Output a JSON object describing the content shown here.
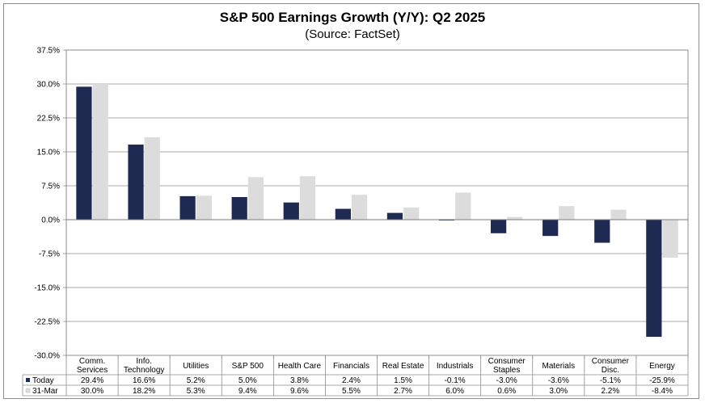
{
  "chart_data": {
    "type": "bar",
    "title": "S&P 500 Earnings Growth (Y/Y): Q2 2025",
    "subtitle": "(Source: FactSet)",
    "categories": [
      [
        "Comm.",
        "Services"
      ],
      [
        "Info.",
        "Technology"
      ],
      [
        "Utilities"
      ],
      [
        "S&P 500"
      ],
      [
        "Health Care"
      ],
      [
        "Financials"
      ],
      [
        "Real Estate"
      ],
      [
        "Industrials"
      ],
      [
        "Consumer",
        "Staples"
      ],
      [
        "Materials"
      ],
      [
        "Consumer",
        "Disc."
      ],
      [
        "Energy"
      ]
    ],
    "series": [
      {
        "name": "Today",
        "color": "#1f2a52",
        "values": [
          29.4,
          16.6,
          5.2,
          5.0,
          3.8,
          2.4,
          1.5,
          -0.1,
          -3.0,
          -3.6,
          -5.1,
          -25.9
        ],
        "labels": [
          "29.4%",
          "16.6%",
          "5.2%",
          "5.0%",
          "3.8%",
          "2.4%",
          "1.5%",
          "-0.1%",
          "-3.0%",
          "-3.6%",
          "-5.1%",
          "-25.9%"
        ]
      },
      {
        "name": "31-Mar",
        "color": "#dcdcdc",
        "values": [
          30.0,
          18.2,
          5.3,
          9.4,
          9.6,
          5.5,
          2.7,
          6.0,
          0.6,
          3.0,
          2.2,
          -8.4
        ],
        "labels": [
          "30.0%",
          "18.2%",
          "5.3%",
          "9.4%",
          "9.6%",
          "5.5%",
          "2.7%",
          "6.0%",
          "0.6%",
          "3.0%",
          "2.2%",
          "-8.4%"
        ]
      }
    ],
    "yticks": [
      37.5,
      30.0,
      22.5,
      15.0,
      7.5,
      0.0,
      -7.5,
      -15.0,
      -22.5,
      -30.0
    ],
    "ytick_labels": [
      "37.5%",
      "30.0%",
      "22.5%",
      "15.0%",
      "7.5%",
      "0.0%",
      "-7.5%",
      "-15.0%",
      "-22.5%",
      "-30.0%"
    ],
    "ylim": [
      -30,
      37.5
    ],
    "grid": true,
    "xlabel": "",
    "ylabel": "",
    "legend": "data-table"
  }
}
